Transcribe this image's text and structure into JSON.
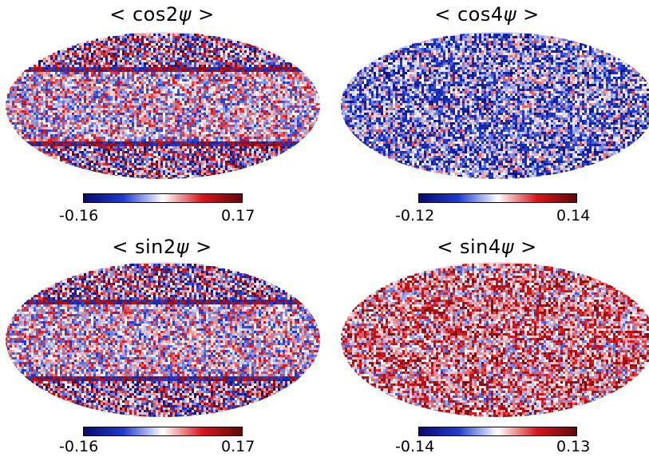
{
  "chart_data": [
    {
      "type": "heatmap",
      "title": "< cos2ψ >",
      "title_main": "< cos2",
      "title_sym": "ψ",
      "title_end": " >",
      "projection": "mollweide",
      "colormap": [
        "#0a0a6e",
        "#1f3bcf",
        "#ffffff",
        "#d8151b",
        "#5e0a0a"
      ],
      "range": [
        -0.16,
        0.17
      ],
      "tick_min": "-0.16",
      "tick_max": "0.17",
      "pattern": "banded",
      "seed": 11
    },
    {
      "type": "heatmap",
      "title": "< cos4ψ >",
      "title_main": "< cos4",
      "title_sym": "ψ",
      "title_end": " >",
      "projection": "mollweide",
      "colormap": [
        "#0a0a6e",
        "#1f3bcf",
        "#ffffff",
        "#d8151b",
        "#5e0a0a"
      ],
      "range": [
        -0.12,
        0.14
      ],
      "tick_min": "-0.12",
      "tick_max": "0.14",
      "pattern": "bluish",
      "seed": 23
    },
    {
      "type": "heatmap",
      "title": "< sin2ψ >",
      "title_main": "< sin2",
      "title_sym": "ψ",
      "title_end": " >",
      "projection": "mollweide",
      "colormap": [
        "#0a0a6e",
        "#1f3bcf",
        "#ffffff",
        "#d8151b",
        "#5e0a0a"
      ],
      "range": [
        -0.16,
        0.17
      ],
      "tick_min": "-0.16",
      "tick_max": "0.17",
      "pattern": "banded",
      "seed": 37
    },
    {
      "type": "heatmap",
      "title": "< sin4ψ >",
      "title_main": "< sin4",
      "title_sym": "ψ",
      "title_end": " >",
      "projection": "mollweide",
      "colormap": [
        "#0a0a6e",
        "#1f3bcf",
        "#ffffff",
        "#d8151b",
        "#5e0a0a"
      ],
      "range": [
        -0.14,
        0.13
      ],
      "tick_min": "-0.14",
      "tick_max": "0.13",
      "pattern": "reddish",
      "seed": 51
    }
  ]
}
